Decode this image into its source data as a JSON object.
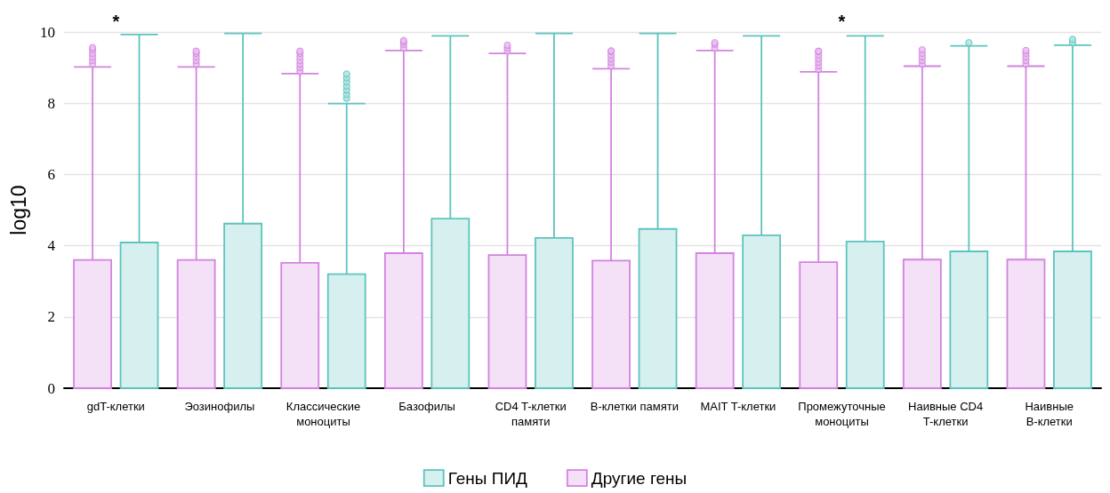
{
  "chart_data": {
    "type": "box",
    "ylabel": "log10",
    "categories": [
      "gdT-клетки",
      "Эозинофилы",
      "Классические\nмоноциты",
      "Базофилы",
      "CD4 T-клетки\nпамяти",
      "B-клетки памяти",
      "MAIT T-клетки",
      "Промежуточные\nмоноциты",
      "Наивные CD4\nT-клетки",
      "Наивные\nB-клетки"
    ],
    "series": [
      {
        "name": "Другие гены",
        "color": "#d383e0",
        "boxes": [
          {
            "low": 0,
            "q1": 0,
            "median": 0,
            "q3": 3.6,
            "high": 9.02,
            "outliers": [
              9.1,
              9.2,
              9.3,
              9.4,
              9.5,
              9.56
            ]
          },
          {
            "low": 0,
            "q1": 0,
            "median": 0,
            "q3": 3.6,
            "high": 9.02,
            "outliers": [
              9.1,
              9.2,
              9.3,
              9.4,
              9.46
            ]
          },
          {
            "low": 0,
            "q1": 0,
            "median": 0,
            "q3": 3.52,
            "high": 8.83,
            "outliers": [
              8.9,
              9.0,
              9.1,
              9.2,
              9.3,
              9.4,
              9.46
            ]
          },
          {
            "low": 0,
            "q1": 0,
            "median": 0,
            "q3": 3.79,
            "high": 9.48,
            "outliers": [
              9.55,
              9.65,
              9.72,
              9.76
            ]
          },
          {
            "low": 0,
            "q1": 0,
            "median": 0,
            "q3": 3.74,
            "high": 9.4,
            "outliers": [
              9.47,
              9.55,
              9.63
            ]
          },
          {
            "low": 0,
            "q1": 0,
            "median": 0,
            "q3": 3.58,
            "high": 8.97,
            "outliers": [
              9.05,
              9.15,
              9.25,
              9.35,
              9.45,
              9.47
            ]
          },
          {
            "low": 0,
            "q1": 0,
            "median": 0,
            "q3": 3.79,
            "high": 9.48,
            "outliers": [
              9.55,
              9.65,
              9.7
            ]
          },
          {
            "low": 0,
            "q1": 0,
            "median": 0,
            "q3": 3.54,
            "high": 8.88,
            "outliers": [
              8.95,
              9.05,
              9.15,
              9.25,
              9.35,
              9.45,
              9.46
            ]
          },
          {
            "low": 0,
            "q1": 0,
            "median": 0,
            "q3": 3.61,
            "high": 9.04,
            "outliers": [
              9.1,
              9.2,
              9.3,
              9.4,
              9.5
            ]
          },
          {
            "low": 0,
            "q1": 0,
            "median": 0,
            "q3": 3.61,
            "high": 9.04,
            "outliers": [
              9.1,
              9.2,
              9.3,
              9.4,
              9.48
            ]
          }
        ]
      },
      {
        "name": "Гены ПИД",
        "color": "#5cc4be",
        "boxes": [
          {
            "low": 0,
            "q1": 0,
            "median": 0,
            "q3": 4.09,
            "high": 9.93
          },
          {
            "low": 0,
            "q1": 0,
            "median": 0,
            "q3": 4.62,
            "high": 9.96
          },
          {
            "low": 0,
            "q1": 0,
            "median": 0,
            "q3": 3.2,
            "high": 7.99,
            "outliers": [
              8.14,
              8.25,
              8.37,
              8.48,
              8.6,
              8.71,
              8.82
            ]
          },
          {
            "low": 0,
            "q1": 0,
            "median": 0,
            "q3": 4.76,
            "high": 9.89
          },
          {
            "low": 0,
            "q1": 0,
            "median": 0,
            "q3": 4.22,
            "high": 9.96
          },
          {
            "low": 0,
            "q1": 0,
            "median": 0,
            "q3": 4.47,
            "high": 9.96
          },
          {
            "low": 0,
            "q1": 0,
            "median": 0,
            "q3": 4.29,
            "high": 9.89
          },
          {
            "low": 0,
            "q1": 0,
            "median": 0,
            "q3": 4.12,
            "high": 9.89
          },
          {
            "low": 0,
            "q1": 0,
            "median": 0,
            "q3": 3.84,
            "high": 9.61,
            "outliers": [
              9.7
            ]
          },
          {
            "low": 0,
            "q1": 0,
            "median": 0,
            "q3": 3.84,
            "high": 9.63,
            "outliers": [
              9.7,
              9.79
            ]
          }
        ]
      }
    ],
    "ylim": [
      0,
      10
    ],
    "yticks": [
      0,
      2,
      4,
      6,
      8,
      10
    ],
    "grid": "y",
    "legend": "bottom",
    "annotations": [
      "*",
      "*"
    ]
  }
}
